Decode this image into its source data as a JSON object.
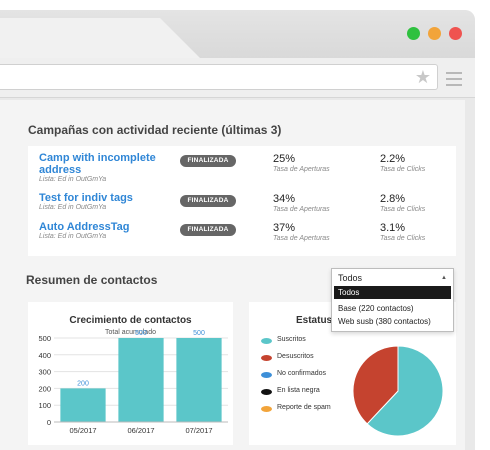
{
  "campaigns": {
    "title": "Campañas con actividad reciente (últimas 3)",
    "items": [
      {
        "name_line1": "Camp with incomplete",
        "name_line2": "address",
        "list": "Lista: Ed in OutGmYa",
        "status": "FINALIZADA",
        "open_rate": "25%",
        "open_label": "Tasa de Aperturas",
        "click_rate": "2.2%",
        "click_label": "Tasa de Clicks"
      },
      {
        "name_line1": "Test for indiv tags",
        "name_line2": "",
        "list": "Lista: Ed in OutGmYa",
        "status": "FINALIZADA",
        "open_rate": "34%",
        "open_label": "Tasa de Aperturas",
        "click_rate": "2.8%",
        "click_label": "Tasa de Clicks"
      },
      {
        "name_line1": "Auto AddressTag",
        "name_line2": "",
        "list": "Lista: Ed in OutGmYa",
        "status": "FINALIZADA",
        "open_rate": "37%",
        "open_label": "Tasa de Aperturas",
        "click_rate": "3.1%",
        "click_label": "Tasa de Clicks"
      }
    ]
  },
  "contacts": {
    "title": "Resumen de contactos",
    "dropdown": {
      "selected": "Todos",
      "options": [
        "Todos",
        "Base (220 contactos)",
        "Web susb (380 contactos)"
      ]
    },
    "status": {
      "title": "Estatus",
      "legend": [
        {
          "label": "Suscritos",
          "color": "#5bc6c9"
        },
        {
          "label": "Desuscritos",
          "color": "#c5432f"
        },
        {
          "label": "No confirmados",
          "color": "#3d8fd8"
        },
        {
          "label": "En lista negra",
          "color": "#111111"
        },
        {
          "label": "Reporte de spam",
          "color": "#f2a43a"
        }
      ]
    }
  },
  "chart_data": [
    {
      "type": "bar",
      "title": "Crecimiento de contactos",
      "subtitle": "Total acumulado",
      "categories": [
        "05/2017",
        "06/2017",
        "07/2017"
      ],
      "values": [
        200,
        500,
        500
      ],
      "data_labels": [
        "200",
        "500",
        "500"
      ],
      "yticks": [
        "0",
        "100",
        "200",
        "300",
        "400",
        "500"
      ],
      "ylim": [
        0,
        500
      ],
      "color": "#5bc6c9",
      "label_color": "#3d8fd8",
      "grid": true
    },
    {
      "type": "pie",
      "title": "Estatus",
      "labels": [
        "Suscritos",
        "Desuscritos"
      ],
      "values": [
        62,
        38
      ],
      "colors": [
        "#5bc6c9",
        "#c5432f"
      ]
    }
  ]
}
